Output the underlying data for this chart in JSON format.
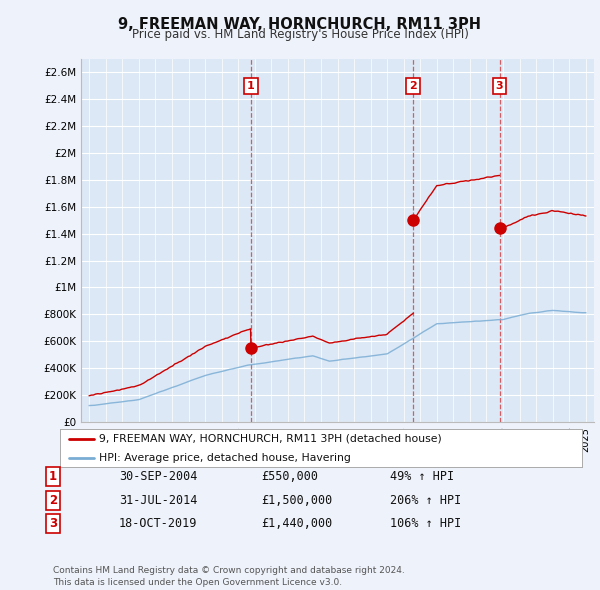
{
  "title": "9, FREEMAN WAY, HORNCHURCH, RM11 3PH",
  "subtitle": "Price paid vs. HM Land Registry's House Price Index (HPI)",
  "red_line_label": "9, FREEMAN WAY, HORNCHURCH, RM11 3PH (detached house)",
  "blue_line_label": "HPI: Average price, detached house, Havering",
  "transactions": [
    {
      "num": "1",
      "date_label": "30-SEP-2004",
      "date_x": 2004.75,
      "price": 550000,
      "pct": "49% ↑ HPI"
    },
    {
      "num": "2",
      "date_label": "31-JUL-2014",
      "date_x": 2014.58,
      "price": 1500000,
      "pct": "206% ↑ HPI"
    },
    {
      "num": "3",
      "date_label": "18-OCT-2019",
      "date_x": 2019.79,
      "price": 1440000,
      "pct": "106% ↑ HPI"
    }
  ],
  "table_rows": [
    [
      "1",
      "30-SEP-2004",
      "£550,000",
      "49% ↑ HPI"
    ],
    [
      "2",
      "31-JUL-2014",
      "£1,500,000",
      "206% ↑ HPI"
    ],
    [
      "3",
      "18-OCT-2019",
      "£1,440,000",
      "106% ↑ HPI"
    ]
  ],
  "footer": "Contains HM Land Registry data © Crown copyright and database right 2024.\nThis data is licensed under the Open Government Licence v3.0.",
  "ylim": [
    0,
    2700000
  ],
  "xlim": [
    1994.5,
    2025.5
  ],
  "yticks": [
    0,
    200000,
    400000,
    600000,
    800000,
    1000000,
    1200000,
    1400000,
    1600000,
    1800000,
    2000000,
    2200000,
    2400000,
    2600000
  ],
  "ytick_labels": [
    "£0",
    "£200K",
    "£400K",
    "£600K",
    "£800K",
    "£1M",
    "£1.2M",
    "£1.4M",
    "£1.6M",
    "£1.8M",
    "£2M",
    "£2.2M",
    "£2.4M",
    "£2.6M"
  ],
  "bg_color": "#eef2fa",
  "plot_bg_color": "#dce8f5",
  "red_color": "#cc0000",
  "blue_color": "#7aadd4",
  "grid_color": "#ffffff",
  "label_num_color": "#cc0000"
}
